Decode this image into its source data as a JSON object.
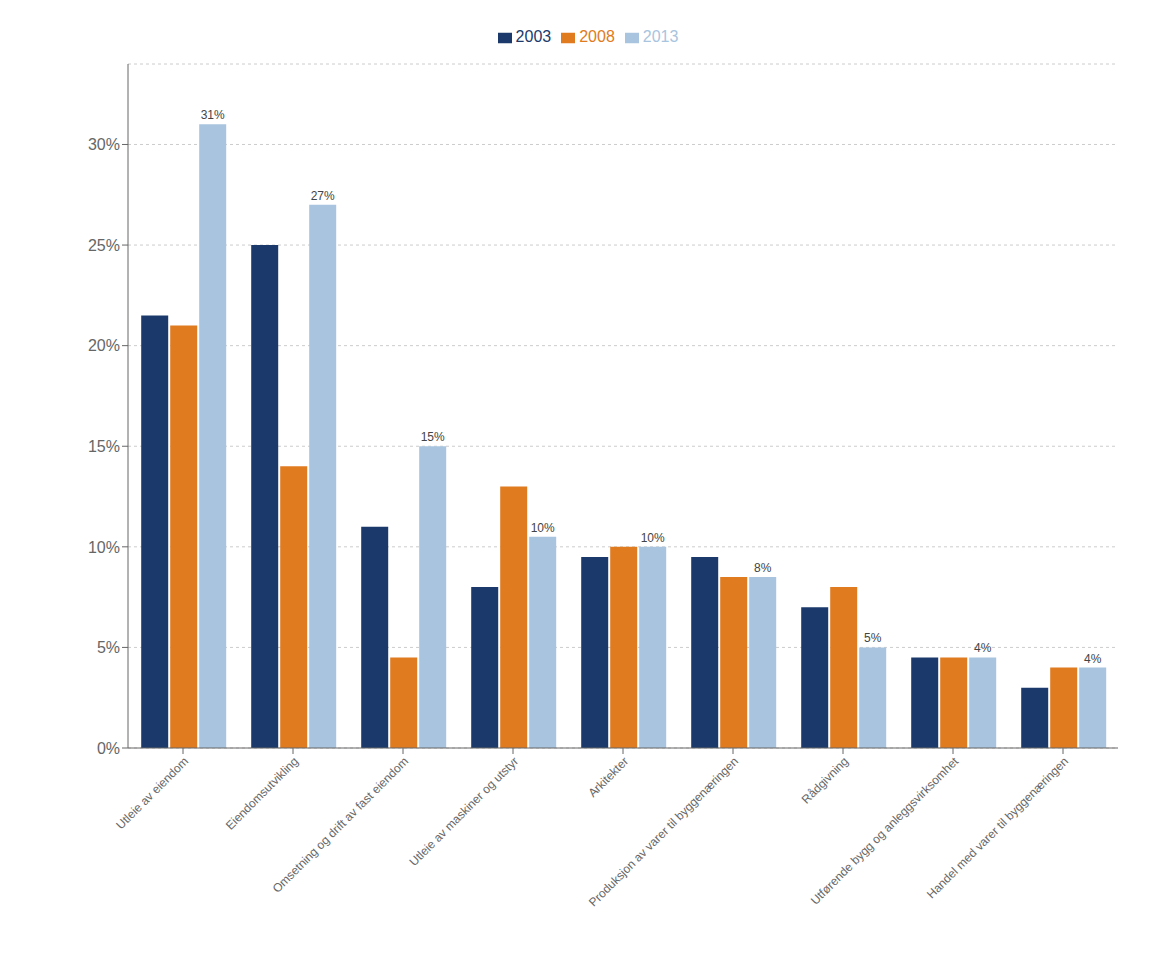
{
  "chart_data": {
    "type": "bar",
    "categories": [
      "Utleie av eiendom",
      "Eiendomsutvikling",
      "Omsetning og drift av fast eiendom",
      "Utleie av maskiner og utstyr",
      "Arkitekter",
      "Produksjon av varer til byggenæringen",
      "Rådgivning",
      "Utførende bygg og anleggsvirksomhet",
      "Handel med varer til byggenæringen"
    ],
    "series": [
      {
        "name": "2003",
        "color": "#1b3a6b",
        "values": [
          21.5,
          25.0,
          11.0,
          8.0,
          9.5,
          9.5,
          7.0,
          4.5,
          3.0
        ]
      },
      {
        "name": "2008",
        "color": "#e07b20",
        "values": [
          21.0,
          14.0,
          4.5,
          13.0,
          10.0,
          8.5,
          8.0,
          4.5,
          4.0
        ]
      },
      {
        "name": "2013",
        "color": "#a8c4de",
        "values": [
          31.0,
          27.0,
          15.0,
          10.5,
          10.0,
          8.5,
          5.0,
          4.5,
          4.0
        ],
        "data_labels": true,
        "value_labels": [
          "31%",
          "27%",
          "15%",
          "10%",
          "10%",
          "8%",
          "5%",
          "4%",
          "4%"
        ]
      }
    ],
    "ylim": [
      0,
      34
    ],
    "yticks": [
      {
        "value": 0,
        "label": "0%"
      },
      {
        "value": 5,
        "label": "5%"
      },
      {
        "value": 10,
        "label": "10%"
      },
      {
        "value": 15,
        "label": "15%"
      },
      {
        "value": 20,
        "label": "20%"
      },
      {
        "value": 25,
        "label": "25%"
      },
      {
        "value": 30,
        "label": "30%"
      }
    ],
    "grid": true,
    "legend": "top"
  }
}
